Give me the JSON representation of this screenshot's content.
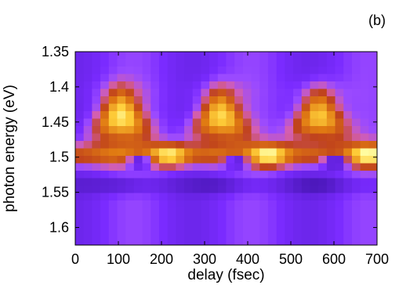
{
  "panel_label": "(b)",
  "chart_data": {
    "type": "heatmap",
    "xlabel": "delay (fsec)",
    "ylabel": "photon energy (eV)",
    "xlim": [
      0,
      700
    ],
    "ylim": [
      1.35,
      1.625
    ],
    "y_inverted": true,
    "x_ticks": [
      0,
      100,
      200,
      300,
      400,
      500,
      600,
      700
    ],
    "y_ticks": [
      1.35,
      1.4,
      1.45,
      1.5,
      1.55,
      1.6
    ],
    "x_tick_labels": [
      "0",
      "100",
      "200",
      "300",
      "400",
      "500",
      "600",
      "700"
    ],
    "y_tick_labels": [
      "1.35",
      "1.4",
      "1.45",
      "1.5",
      "1.55",
      "1.6"
    ],
    "colormap": [
      "#2b0a8a",
      "#7a2bff",
      "#9a4aff",
      "#d35fb0",
      "#c0431c",
      "#e07a12",
      "#ffcf3a",
      "#ffffa8"
    ],
    "background_color": "#8a3cff",
    "oscillation_period_fs": 230,
    "max_energy_delays_fs": [
      105,
      335,
      565
    ],
    "min_energy_delays_fs": [
      220,
      450,
      680
    ],
    "center_energy_eV": 1.5,
    "grid": false
  }
}
